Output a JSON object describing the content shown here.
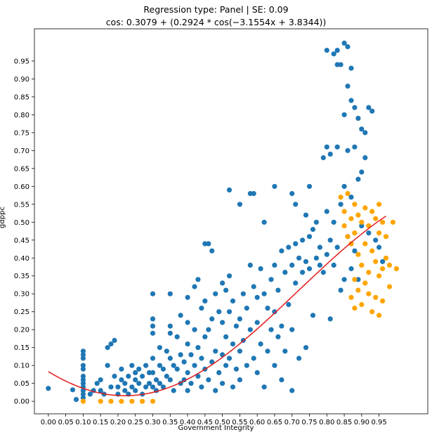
{
  "chart_data": {
    "type": "scatter",
    "title_line1": "Regression type: Panel | SE: 0.09",
    "title_line2": "cos: 0.3079 + (0.2924 * cos(−3.1554x + 3.8344))",
    "xlabel": "Government Integrity",
    "ylabel": "gdppc",
    "xlim": [
      -0.04,
      1.09
    ],
    "ylim": [
      -0.035,
      1.04
    ],
    "x_ticks": [
      "0.00",
      "0.05",
      "0.10",
      "0.15",
      "0.20",
      "0.25",
      "0.30",
      "0.35",
      "0.40",
      "0.45",
      "0.50",
      "0.55",
      "0.60",
      "0.65",
      "0.70",
      "0.75",
      "0.80",
      "0.85",
      "0.90",
      "0.95"
    ],
    "y_ticks": [
      "0.00",
      "0.05",
      "0.10",
      "0.15",
      "0.20",
      "0.25",
      "0.30",
      "0.35",
      "0.40",
      "0.45",
      "0.50",
      "0.55",
      "0.60",
      "0.65",
      "0.70",
      "0.75",
      "0.80",
      "0.85",
      "0.90",
      "0.95"
    ],
    "grid": false,
    "fit": {
      "name": "cos fit",
      "color": "#e31a1c",
      "a": 0.3079,
      "b": 0.2924,
      "c": -3.1554,
      "d": 3.8344,
      "x_range": [
        0.0,
        0.97
      ]
    },
    "series": [
      {
        "color": "#1f77b4",
        "points": [
          [
            0.0,
            0.036
          ],
          [
            0.07,
            0.032
          ],
          [
            0.08,
            0.005
          ],
          [
            0.1,
            0.14
          ],
          [
            0.1,
            0.13
          ],
          [
            0.1,
            0.12
          ],
          [
            0.1,
            0.1
          ],
          [
            0.1,
            0.09
          ],
          [
            0.1,
            0.07
          ],
          [
            0.1,
            0.06
          ],
          [
            0.1,
            0.05
          ],
          [
            0.1,
            0.04
          ],
          [
            0.1,
            0.03
          ],
          [
            0.1,
            0.02
          ],
          [
            0.1,
            0.01
          ],
          [
            0.12,
            0.02
          ],
          [
            0.13,
            0.03
          ],
          [
            0.14,
            0.05
          ],
          [
            0.15,
            0.06
          ],
          [
            0.15,
            0.03
          ],
          [
            0.16,
            0.02
          ],
          [
            0.17,
            0.15
          ],
          [
            0.17,
            0.1
          ],
          [
            0.18,
            0.16
          ],
          [
            0.18,
            0.04
          ],
          [
            0.19,
            0.17
          ],
          [
            0.19,
            0.07
          ],
          [
            0.2,
            0.04
          ],
          [
            0.2,
            0.02
          ],
          [
            0.21,
            0.09
          ],
          [
            0.21,
            0.06
          ],
          [
            0.22,
            0.05
          ],
          [
            0.22,
            0.03
          ],
          [
            0.23,
            0.07
          ],
          [
            0.23,
            0.02
          ],
          [
            0.24,
            0.1
          ],
          [
            0.24,
            0.04
          ],
          [
            0.25,
            0.08
          ],
          [
            0.25,
            0.06
          ],
          [
            0.25,
            0.03
          ],
          [
            0.26,
            0.09
          ],
          [
            0.26,
            0.05
          ],
          [
            0.27,
            0.02
          ],
          [
            0.27,
            0.07
          ],
          [
            0.28,
            0.04
          ],
          [
            0.28,
            0.1
          ],
          [
            0.29,
            0.05
          ],
          [
            0.29,
            0.08
          ],
          [
            0.3,
            0.3
          ],
          [
            0.3,
            0.23
          ],
          [
            0.3,
            0.21
          ],
          [
            0.3,
            0.19
          ],
          [
            0.3,
            0.12
          ],
          [
            0.3,
            0.08
          ],
          [
            0.3,
            0.04
          ],
          [
            0.31,
            0.03
          ],
          [
            0.31,
            0.06
          ],
          [
            0.32,
            0.15
          ],
          [
            0.32,
            0.1
          ],
          [
            0.32,
            0.05
          ],
          [
            0.33,
            0.09
          ],
          [
            0.33,
            0.04
          ],
          [
            0.34,
            0.14
          ],
          [
            0.34,
            0.07
          ],
          [
            0.35,
            0.3
          ],
          [
            0.35,
            0.21
          ],
          [
            0.35,
            0.19
          ],
          [
            0.35,
            0.12
          ],
          [
            0.35,
            0.06
          ],
          [
            0.36,
            0.1
          ],
          [
            0.36,
            0.03
          ],
          [
            0.37,
            0.18
          ],
          [
            0.37,
            0.09
          ],
          [
            0.38,
            0.24
          ],
          [
            0.38,
            0.13
          ],
          [
            0.38,
            0.05
          ],
          [
            0.39,
            0.11
          ],
          [
            0.39,
            0.06
          ],
          [
            0.4,
            0.29
          ],
          [
            0.4,
            0.22
          ],
          [
            0.4,
            0.16
          ],
          [
            0.4,
            0.08
          ],
          [
            0.4,
            0.03
          ],
          [
            0.41,
            0.13
          ],
          [
            0.41,
            0.05
          ],
          [
            0.42,
            0.32
          ],
          [
            0.42,
            0.2
          ],
          [
            0.42,
            0.1
          ],
          [
            0.43,
            0.34
          ],
          [
            0.43,
            0.15
          ],
          [
            0.43,
            0.07
          ],
          [
            0.44,
            0.26
          ],
          [
            0.44,
            0.12
          ],
          [
            0.44,
            0.04
          ],
          [
            0.45,
            0.44
          ],
          [
            0.45,
            0.28
          ],
          [
            0.45,
            0.18
          ],
          [
            0.45,
            0.09
          ],
          [
            0.46,
            0.44
          ],
          [
            0.46,
            0.2
          ],
          [
            0.46,
            0.06
          ],
          [
            0.47,
            0.42
          ],
          [
            0.47,
            0.23
          ],
          [
            0.47,
            0.11
          ],
          [
            0.48,
            0.3
          ],
          [
            0.48,
            0.14
          ],
          [
            0.48,
            0.03
          ],
          [
            0.49,
            0.25
          ],
          [
            0.49,
            0.08
          ],
          [
            0.5,
            0.33
          ],
          [
            0.5,
            0.22
          ],
          [
            0.5,
            0.13
          ],
          [
            0.5,
            0.05
          ],
          [
            0.51,
            0.31
          ],
          [
            0.51,
            0.18
          ],
          [
            0.51,
            0.1
          ],
          [
            0.52,
            0.59
          ],
          [
            0.52,
            0.35
          ],
          [
            0.52,
            0.25
          ],
          [
            0.52,
            0.12
          ],
          [
            0.53,
            0.28
          ],
          [
            0.53,
            0.16
          ],
          [
            0.53,
            0.04
          ],
          [
            0.54,
            0.21
          ],
          [
            0.54,
            0.09
          ],
          [
            0.55,
            0.55
          ],
          [
            0.55,
            0.23
          ],
          [
            0.55,
            0.14
          ],
          [
            0.55,
            0.06
          ],
          [
            0.56,
            0.3
          ],
          [
            0.56,
            0.17
          ],
          [
            0.57,
            0.26
          ],
          [
            0.57,
            0.1
          ],
          [
            0.58,
            0.58
          ],
          [
            0.58,
            0.38
          ],
          [
            0.58,
            0.2
          ],
          [
            0.59,
            0.58
          ],
          [
            0.59,
            0.32
          ],
          [
            0.59,
            0.12
          ],
          [
            0.6,
            0.29
          ],
          [
            0.6,
            0.22
          ],
          [
            0.6,
            0.08
          ],
          [
            0.61,
            0.37
          ],
          [
            0.61,
            0.16
          ],
          [
            0.62,
            0.5
          ],
          [
            0.62,
            0.3
          ],
          [
            0.62,
            0.04
          ],
          [
            0.63,
            0.26
          ],
          [
            0.63,
            0.14
          ],
          [
            0.64,
            0.34
          ],
          [
            0.64,
            0.2
          ],
          [
            0.65,
            0.6
          ],
          [
            0.65,
            0.38
          ],
          [
            0.65,
            0.25
          ],
          [
            0.65,
            0.1
          ],
          [
            0.66,
            0.31
          ],
          [
            0.66,
            0.18
          ],
          [
            0.67,
            0.42
          ],
          [
            0.67,
            0.21
          ],
          [
            0.67,
            0.06
          ],
          [
            0.68,
            0.36
          ],
          [
            0.68,
            0.14
          ],
          [
            0.69,
            0.43
          ],
          [
            0.69,
            0.27
          ],
          [
            0.7,
            0.58
          ],
          [
            0.7,
            0.38
          ],
          [
            0.7,
            0.2
          ],
          [
            0.7,
            0.03
          ],
          [
            0.71,
            0.55
          ],
          [
            0.71,
            0.44
          ],
          [
            0.71,
            0.33
          ],
          [
            0.72,
            0.4
          ],
          [
            0.72,
            0.12
          ],
          [
            0.73,
            0.45
          ],
          [
            0.73,
            0.36
          ],
          [
            0.74,
            0.52
          ],
          [
            0.74,
            0.39
          ],
          [
            0.74,
            0.15
          ],
          [
            0.75,
            0.6
          ],
          [
            0.75,
            0.46
          ],
          [
            0.75,
            0.37
          ],
          [
            0.76,
            0.48
          ],
          [
            0.76,
            0.24
          ],
          [
            0.77,
            0.5
          ],
          [
            0.77,
            0.4
          ],
          [
            0.78,
            0.43
          ],
          [
            0.78,
            0.38
          ],
          [
            0.79,
            0.68
          ],
          [
            0.79,
            0.36
          ],
          [
            0.8,
            0.98
          ],
          [
            0.8,
            0.71
          ],
          [
            0.8,
            0.53
          ],
          [
            0.8,
            0.41
          ],
          [
            0.81,
            0.69
          ],
          [
            0.81,
            0.45
          ],
          [
            0.81,
            0.23
          ],
          [
            0.82,
            0.97
          ],
          [
            0.82,
            0.5
          ],
          [
            0.82,
            0.38
          ],
          [
            0.83,
            0.98
          ],
          [
            0.83,
            0.94
          ],
          [
            0.83,
            0.71
          ],
          [
            0.83,
            0.43
          ],
          [
            0.84,
            0.94
          ],
          [
            0.84,
            0.55
          ],
          [
            0.84,
            0.31
          ],
          [
            0.85,
            1.0
          ],
          [
            0.85,
            0.8
          ],
          [
            0.85,
            0.6
          ],
          [
            0.85,
            0.34
          ],
          [
            0.86,
            0.99
          ],
          [
            0.86,
            0.88
          ],
          [
            0.86,
            0.7
          ],
          [
            0.86,
            0.46
          ],
          [
            0.87,
            0.93
          ],
          [
            0.87,
            0.84
          ],
          [
            0.87,
            0.57
          ],
          [
            0.87,
            0.37
          ],
          [
            0.88,
            0.82
          ],
          [
            0.88,
            0.71
          ],
          [
            0.88,
            0.42
          ],
          [
            0.89,
            0.79
          ],
          [
            0.89,
            0.62
          ],
          [
            0.89,
            0.34
          ],
          [
            0.9,
            0.76
          ],
          [
            0.9,
            0.64
          ],
          [
            0.9,
            0.49
          ],
          [
            0.91,
            0.75
          ],
          [
            0.91,
            0.68
          ],
          [
            0.92,
            0.82
          ],
          [
            0.92,
            0.47
          ],
          [
            0.93,
            0.81
          ],
          [
            0.94,
            0.45
          ],
          [
            0.95,
            0.43
          ],
          [
            0.96,
            0.39
          ]
        ]
      },
      {
        "color": "#ffa500",
        "points": [
          [
            0.1,
            0.0
          ],
          [
            0.15,
            0.0
          ],
          [
            0.18,
            0.0
          ],
          [
            0.21,
            0.0
          ],
          [
            0.24,
            0.0
          ],
          [
            0.27,
            0.0
          ],
          [
            0.3,
            0.0
          ],
          [
            0.84,
            0.57
          ],
          [
            0.85,
            0.53
          ],
          [
            0.85,
            0.49
          ],
          [
            0.86,
            0.46
          ],
          [
            0.86,
            0.58
          ],
          [
            0.87,
            0.51
          ],
          [
            0.87,
            0.44
          ],
          [
            0.87,
            0.29
          ],
          [
            0.88,
            0.55
          ],
          [
            0.88,
            0.47
          ],
          [
            0.88,
            0.34
          ],
          [
            0.88,
            0.26
          ],
          [
            0.89,
            0.52
          ],
          [
            0.89,
            0.41
          ],
          [
            0.89,
            0.31
          ],
          [
            0.9,
            0.5
          ],
          [
            0.9,
            0.38
          ],
          [
            0.9,
            0.27
          ],
          [
            0.91,
            0.54
          ],
          [
            0.91,
            0.44
          ],
          [
            0.91,
            0.33
          ],
          [
            0.92,
            0.49
          ],
          [
            0.92,
            0.36
          ],
          [
            0.92,
            0.3
          ],
          [
            0.93,
            0.53
          ],
          [
            0.93,
            0.42
          ],
          [
            0.93,
            0.25
          ],
          [
            0.94,
            0.51
          ],
          [
            0.94,
            0.39
          ],
          [
            0.94,
            0.29
          ],
          [
            0.95,
            0.55
          ],
          [
            0.95,
            0.47
          ],
          [
            0.95,
            0.35
          ],
          [
            0.95,
            0.24
          ],
          [
            0.96,
            0.5
          ],
          [
            0.96,
            0.37
          ],
          [
            0.96,
            0.28
          ],
          [
            0.97,
            0.46
          ],
          [
            0.97,
            0.4
          ],
          [
            0.98,
            0.38
          ],
          [
            0.98,
            0.32
          ],
          [
            0.99,
            0.5
          ],
          [
            1.0,
            0.37
          ]
        ]
      }
    ]
  }
}
